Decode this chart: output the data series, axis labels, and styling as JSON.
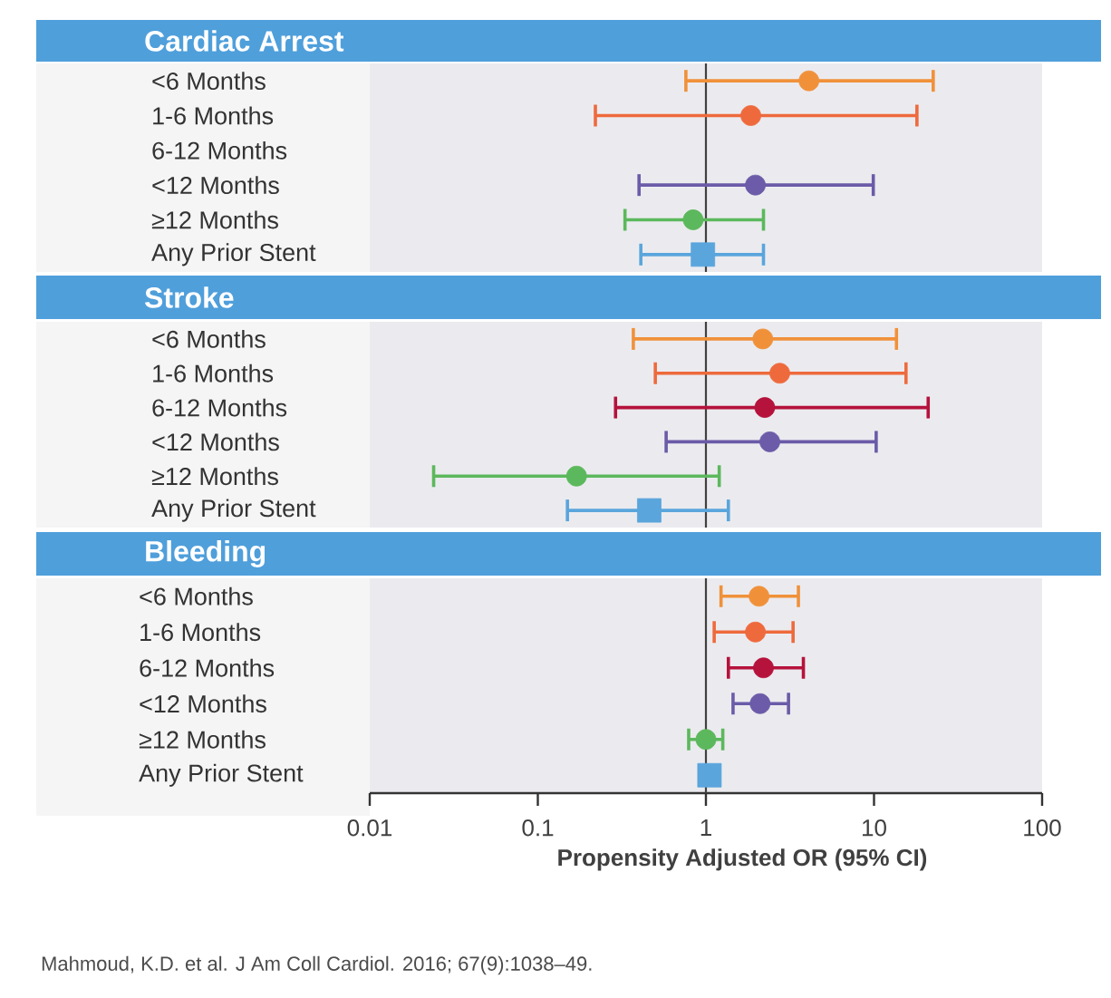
{
  "chart_data": [
    {
      "type": "scatter",
      "title": "Cardiac Arrest",
      "orientation": "horizontal",
      "log": "x",
      "xlim": [
        0.01,
        100
      ],
      "xticks": [
        0.01,
        0.1,
        1,
        10,
        100
      ],
      "tick_labels": "y",
      "categories": [
        "<6 Months",
        "1-6 Months",
        "6-12 Months",
        "<12 Months",
        "≥12 Months",
        "Any Prior Stent"
      ],
      "ref_lines": [
        {
          "axis": "x",
          "value": 1,
          "color": "#404040"
        }
      ],
      "series": [
        {
          "marker": "circle",
          "values": [
            4.1,
            1.85,
            null,
            1.97,
            0.84,
            null
          ],
          "errors": [
            [
              0.76,
              22.5
            ],
            [
              0.22,
              18
            ],
            null,
            [
              0.4,
              9.9
            ],
            [
              0.33,
              2.2
            ],
            null
          ],
          "colors": [
            "#f0913a",
            "#ee6a3c",
            null,
            "#6b5ba8",
            "#5cb85c",
            null
          ]
        },
        {
          "marker": "square",
          "values": [
            null,
            null,
            null,
            null,
            null,
            0.96
          ],
          "errors": [
            null,
            null,
            null,
            null,
            null,
            [
              0.41,
              2.2
            ]
          ],
          "colors": [
            null,
            null,
            null,
            null,
            null,
            "#5aa5dc"
          ]
        }
      ]
    },
    {
      "type": "scatter",
      "title": "Stroke",
      "orientation": "horizontal",
      "log": "x",
      "xlim": [
        0.01,
        100
      ],
      "xticks": [
        0.01,
        0.1,
        1,
        10,
        100
      ],
      "tick_labels": "y",
      "categories": [
        "<6 Months",
        "1-6 Months",
        "6-12 Months",
        "<12 Months",
        "≥12 Months",
        "Any Prior Stent"
      ],
      "ref_lines": [
        {
          "axis": "x",
          "value": 1,
          "color": "#404040"
        }
      ],
      "series": [
        {
          "marker": "circle",
          "values": [
            2.18,
            2.75,
            2.24,
            2.4,
            0.17,
            null
          ],
          "errors": [
            [
              0.37,
              13.6
            ],
            [
              0.5,
              15.5
            ],
            [
              0.29,
              21
            ],
            [
              0.58,
              10.3
            ],
            [
              0.024,
              1.2
            ],
            null
          ],
          "colors": [
            "#f0913a",
            "#ee6a3c",
            "#b5123c",
            "#6b5ba8",
            "#5cb85c",
            null
          ]
        },
        {
          "marker": "square",
          "values": [
            null,
            null,
            null,
            null,
            null,
            0.46
          ],
          "errors": [
            null,
            null,
            null,
            null,
            null,
            [
              0.15,
              1.36
            ]
          ],
          "colors": [
            null,
            null,
            null,
            null,
            null,
            "#5aa5dc"
          ]
        }
      ]
    },
    {
      "type": "scatter",
      "title": "Bleeding",
      "orientation": "horizontal",
      "log": "x",
      "xlim": [
        0.01,
        100
      ],
      "xticks": [
        0.01,
        0.1,
        1,
        10,
        100
      ],
      "xlabel": "Propensity Adjusted OR (95% CI)",
      "annotations": [
        "Mahmoud, K.D. et al. J Am Coll Cardiol. 2016; 67(9):1038–49."
      ],
      "categories": [
        "<6 Months",
        "1-6 Months",
        "6-12 Months",
        "<12 Months",
        "≥12 Months",
        "Any Prior Stent"
      ],
      "ref_lines": [
        {
          "axis": "x",
          "value": 1,
          "color": "#404040"
        }
      ],
      "series": [
        {
          "marker": "circle",
          "values": [
            2.07,
            1.97,
            2.2,
            2.1,
            1.0,
            null
          ],
          "errors": [
            [
              1.23,
              3.55
            ],
            [
              1.12,
              3.3
            ],
            [
              1.36,
              3.8
            ],
            [
              1.45,
              3.1
            ],
            [
              0.79,
              1.26
            ],
            null
          ],
          "colors": [
            "#f0913a",
            "#ee6a3c",
            "#b5123c",
            "#6b5ba8",
            "#5cb85c",
            null
          ]
        },
        {
          "marker": "square",
          "values": [
            null,
            null,
            null,
            null,
            null,
            1.05
          ],
          "errors": [
            null,
            null,
            null,
            null,
            null,
            null
          ],
          "colors": [
            null,
            null,
            null,
            null,
            null,
            "#5aa5dc"
          ]
        }
      ]
    }
  ]
}
